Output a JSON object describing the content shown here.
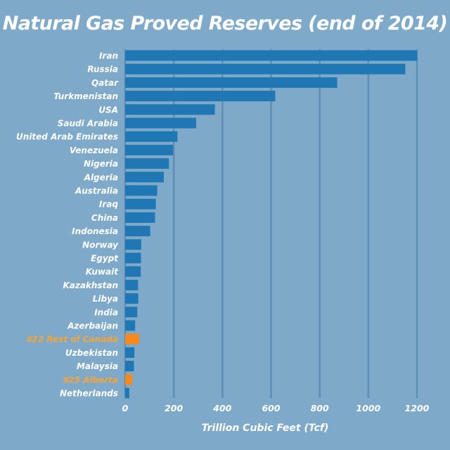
{
  "chart_data": {
    "type": "bar",
    "orientation": "horizontal",
    "title": "Natural Gas Proved Reserves (end of 2014)",
    "xlabel": "Trillion Cubic Feet (Tcf)",
    "ylabel": "",
    "xlim": [
      0,
      1200
    ],
    "xticks": [
      0,
      200,
      400,
      600,
      800,
      1000,
      1200
    ],
    "grid": true,
    "categories": [
      "Iran",
      "Russia",
      "Qatar",
      "Turkmenistan",
      "USA",
      "Saudi Arabia",
      "United Arab Emirates",
      "Venezuela",
      "Nigeria",
      "Algeria",
      "Australia",
      "Iraq",
      "China",
      "Indonesia",
      "Norway",
      "Egypt",
      "Kuwait",
      "Kazakhstan",
      "Libya",
      "India",
      "Azerbaijan",
      "#22 Rest of Canada",
      "Uzbekistan",
      "Malaysia",
      "#25 Alberta",
      "Netherlands"
    ],
    "values": [
      1201,
      1152,
      872,
      617,
      369,
      292,
      215,
      197,
      180,
      159,
      132,
      126,
      123,
      103,
      66,
      65,
      64,
      53,
      54,
      50,
      41,
      58,
      38,
      36,
      29,
      17
    ],
    "highlighted": [
      "#22 Rest of Canada",
      "#25 Alberta"
    ],
    "colors": {
      "background": "#7fa9c9",
      "bar": "#1f78b4",
      "highlight": "#f7891d",
      "highlight_label": "#f5a43a",
      "grid": "#5f8db3",
      "text": "#ffffff"
    }
  }
}
